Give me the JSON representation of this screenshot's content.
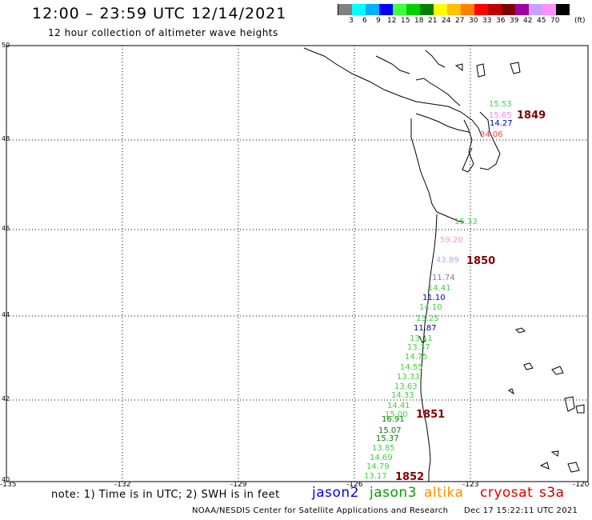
{
  "title": "12:00 – 23:59 UTC 12/14/2021",
  "subtitle": "12 hour collection of altimeter wave heights",
  "scale": {
    "colors": [
      "#808080",
      "#00ffff",
      "#00b0ff",
      "#0000ff",
      "#40ff40",
      "#00d000",
      "#008000",
      "#ffff00",
      "#ffc000",
      "#ff8000",
      "#ff0000",
      "#c00000",
      "#800000",
      "#a000a0",
      "#c8a0ff",
      "#ff90ff",
      "#000000"
    ],
    "labels": [
      "3",
      "6",
      "9",
      "12",
      "15",
      "18",
      "21",
      "24",
      "27",
      "30",
      "33",
      "36",
      "39",
      "42",
      "45",
      "70",
      "(ft)"
    ]
  },
  "axes": {
    "lat_ticks": [
      "50",
      "48",
      "46",
      "44",
      "42",
      "40"
    ],
    "lon_ticks": [
      "-135",
      "-132",
      "-129",
      "-126",
      "-123",
      "-120"
    ]
  },
  "note": "note: 1) Time is in UTC; 2) SWH is in feet",
  "legend": [
    {
      "name": "jason2",
      "color": "#0000e0"
    },
    {
      "name": "jason3",
      "color": "#00a000"
    },
    {
      "name": "altika",
      "color": "#ff9000"
    },
    {
      "name": "cryosat",
      "color": "#e00000"
    },
    {
      "name": "s3a",
      "color": "#c00000"
    }
  ],
  "credit": "NOAA/NESDIS Center for Satellite Applications and Research",
  "generated": "Dec 17 15:22:11 UTC 2021",
  "time_labels": [
    "1849",
    "1850",
    "1851",
    "1852"
  ],
  "wave_labels": [
    {
      "text": "15.53",
      "color": "#40d040"
    },
    {
      "text": "15.65",
      "color": "#ff80ff"
    },
    {
      "text": "14.27",
      "color": "#0000c0"
    },
    {
      "text": "34.06",
      "color": "#ff4040"
    },
    {
      "text": "15.33",
      "color": "#40d040"
    },
    {
      "text": "59.20",
      "color": "#ff90d0"
    },
    {
      "text": "43.89",
      "color": "#c0a0ff"
    },
    {
      "text": "11.74",
      "color": "#808080"
    },
    {
      "text": "14.41",
      "color": "#40d040"
    },
    {
      "text": "11.10",
      "color": "#0000c0"
    },
    {
      "text": "14.10",
      "color": "#40d040"
    },
    {
      "text": "13.25",
      "color": "#40d040"
    },
    {
      "text": "11.87",
      "color": "#0000c0"
    },
    {
      "text": "13.11",
      "color": "#40d040"
    },
    {
      "text": "13.37",
      "color": "#40d040"
    },
    {
      "text": "14.75",
      "color": "#40d040"
    },
    {
      "text": "14.55",
      "color": "#40d040"
    },
    {
      "text": "13.33",
      "color": "#40d040"
    },
    {
      "text": "13.63",
      "color": "#40d040"
    },
    {
      "text": "14.33",
      "color": "#40d040"
    },
    {
      "text": "14.41",
      "color": "#40d040"
    },
    {
      "text": "15.00",
      "color": "#40d040"
    },
    {
      "text": "16.91",
      "color": "#008000"
    },
    {
      "text": "15.07",
      "color": "#008000"
    },
    {
      "text": "15.37",
      "color": "#008000"
    },
    {
      "text": "13.85",
      "color": "#40d040"
    },
    {
      "text": "14.69",
      "color": "#40d040"
    },
    {
      "text": "14.79",
      "color": "#40d040"
    },
    {
      "text": "13.17",
      "color": "#40d040"
    }
  ],
  "time_color": "#800000"
}
